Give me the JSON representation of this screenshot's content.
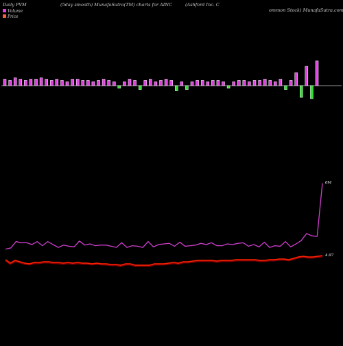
{
  "header": {
    "left": "Daily PVM",
    "middle": "(5day smooth) MunafaSutra(TM) charts for AINC",
    "right": "(Ashford Inc. C",
    "right2": "ommon Stock) MunafaSutra.com"
  },
  "legend": {
    "volume_label": "Volume",
    "price_label": "Price",
    "volume_color": "#e040e0",
    "price_color": "#ff5a3c"
  },
  "colors": {
    "background": "#000000",
    "baseline": "#c8c8c8",
    "bar_up": "#e040e0",
    "bar_down": "#33dd33",
    "bar_border": "#ffffff",
    "volume_line": "#d040d0",
    "price_line": "#ff2200",
    "price_shadow": "#8b0000"
  },
  "chart_data": {
    "type": "line",
    "volume_label_right": "0M",
    "price_label_right": "4.97",
    "pvm_bars": [
      5,
      4,
      6,
      5,
      4,
      5,
      5,
      6,
      5,
      4,
      5,
      4,
      3,
      5,
      5,
      4,
      4,
      3,
      4,
      5,
      4,
      3,
      -2,
      3,
      5,
      4,
      -3,
      4,
      5,
      3,
      4,
      5,
      4,
      -4,
      3,
      -3,
      3,
      4,
      4,
      3,
      4,
      4,
      3,
      -2,
      3,
      4,
      4,
      3,
      4,
      4,
      5,
      4,
      3,
      5,
      -3,
      4,
      10,
      -9,
      15,
      -10,
      19
    ],
    "volume": [
      17,
      19,
      30,
      28,
      28,
      25,
      30,
      23,
      30,
      25,
      20,
      24,
      22,
      21,
      31,
      24,
      26,
      23,
      24,
      24,
      22,
      20,
      28,
      20,
      23,
      22,
      20,
      30,
      21,
      25,
      26,
      27,
      22,
      29,
      22,
      23,
      24,
      27,
      25,
      28,
      23,
      23,
      26,
      25,
      27,
      28,
      22,
      25,
      21,
      29,
      20,
      23,
      22,
      30,
      21,
      26,
      32,
      44,
      40,
      39,
      131
    ],
    "price": [
      18,
      13,
      17,
      15,
      13,
      12,
      14,
      14,
      15,
      15,
      14,
      14,
      13,
      14,
      13,
      14,
      13,
      13,
      12,
      13,
      12,
      12,
      11,
      11,
      10,
      12,
      12,
      10,
      10,
      10,
      10,
      12,
      12,
      12,
      13,
      14,
      13,
      15,
      15,
      16,
      17,
      17,
      17,
      17,
      16,
      17,
      17,
      17,
      18,
      18,
      18,
      18,
      18,
      17,
      17,
      18,
      18,
      19,
      19,
      18,
      20,
      22,
      23,
      22,
      22,
      23,
      24
    ]
  }
}
